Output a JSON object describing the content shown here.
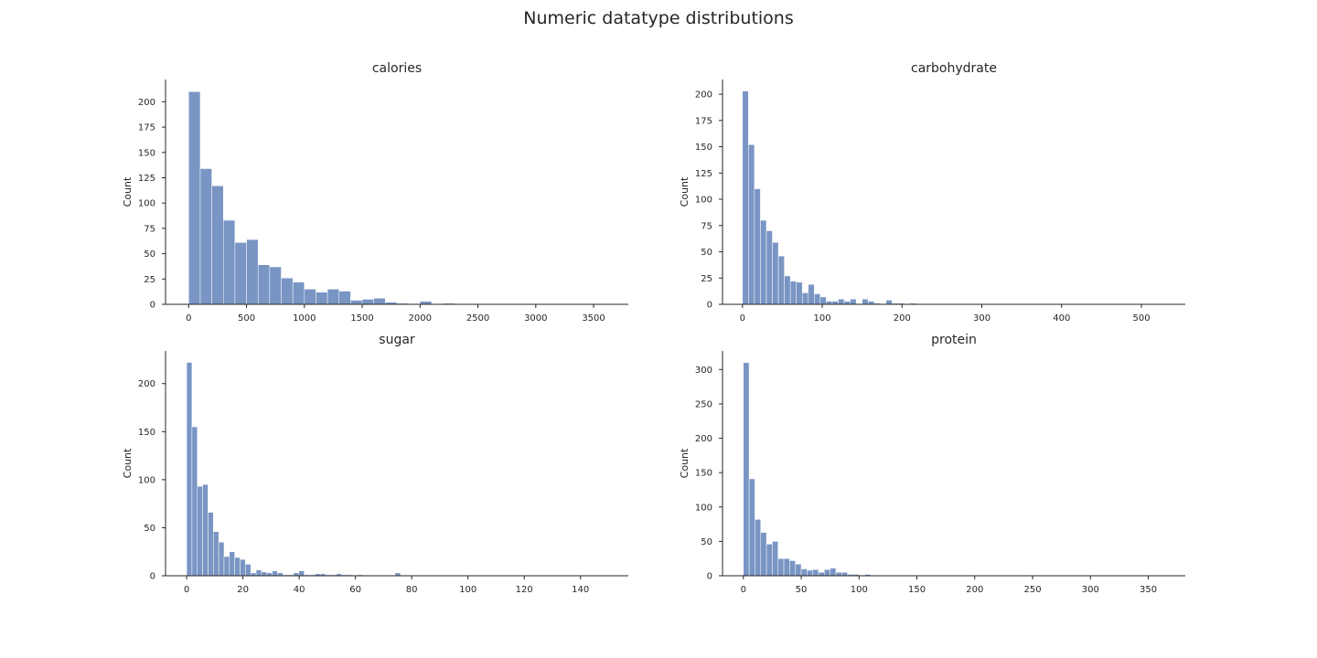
{
  "figure": {
    "title": "Numeric datatype distributions"
  },
  "chart_data": [
    {
      "type": "bar",
      "title": "calories",
      "xlabel": "",
      "ylabel": "Count",
      "xlim": [
        -200,
        3800
      ],
      "ylim": [
        0,
        222
      ],
      "xticks": [
        0,
        500,
        1000,
        1500,
        2000,
        2500,
        3000,
        3500
      ],
      "yticks": [
        0,
        25,
        50,
        75,
        100,
        125,
        150,
        175,
        200
      ],
      "bin_start": 0,
      "bin_width": 100,
      "values": [
        210,
        134,
        117,
        83,
        61,
        64,
        39,
        37,
        26,
        22,
        15,
        12,
        15,
        13,
        4,
        5,
        6,
        2,
        1,
        0,
        3,
        0,
        1,
        0,
        0,
        0,
        0,
        0,
        0,
        0,
        0,
        0,
        0,
        0,
        0,
        0,
        0
      ]
    },
    {
      "type": "bar",
      "title": "carbohydrate",
      "xlabel": "",
      "ylabel": "Count",
      "xlim": [
        -25,
        555
      ],
      "ylim": [
        0,
        214
      ],
      "xticks": [
        0,
        100,
        200,
        300,
        400,
        500
      ],
      "yticks": [
        0,
        25,
        50,
        75,
        100,
        125,
        150,
        175,
        200
      ],
      "bin_start": 0,
      "bin_width": 7.5,
      "values": [
        203,
        152,
        110,
        80,
        70,
        59,
        46,
        27,
        22,
        21,
        11,
        19,
        10,
        7,
        3,
        3,
        5,
        3,
        5,
        0,
        5,
        3,
        1,
        0,
        4,
        1,
        1,
        0,
        1,
        0,
        0,
        0,
        0,
        0,
        0,
        0,
        0,
        0,
        0,
        0,
        0,
        0,
        0,
        0,
        0,
        0,
        0,
        0,
        0,
        0,
        0,
        0,
        0,
        0,
        0,
        0,
        0,
        0,
        0,
        0,
        0,
        0,
        0,
        0,
        0,
        0,
        0,
        0,
        0,
        0
      ]
    },
    {
      "type": "bar",
      "title": "sugar",
      "xlabel": "",
      "ylabel": "Count",
      "xlim": [
        -7.5,
        157
      ],
      "ylim": [
        0,
        234
      ],
      "xticks": [
        0,
        20,
        40,
        60,
        80,
        100,
        120,
        140
      ],
      "yticks": [
        0,
        50,
        100,
        150,
        200
      ],
      "bin_start": 0,
      "bin_width": 1.9,
      "values": [
        222,
        155,
        93,
        95,
        66,
        46,
        35,
        20,
        25,
        19,
        17,
        12,
        3,
        6,
        4,
        3,
        5,
        3,
        1,
        1,
        3,
        5,
        1,
        1,
        2,
        2,
        1,
        1,
        2,
        1,
        1,
        0,
        1,
        0,
        0,
        0,
        0,
        0,
        0,
        3,
        0,
        0,
        0,
        0,
        0,
        0,
        0,
        0,
        0,
        0,
        0,
        0,
        0,
        0,
        0,
        0,
        0,
        0,
        0,
        0,
        0,
        0,
        0,
        0,
        0,
        0,
        0,
        0,
        0,
        0,
        0,
        0,
        0,
        0,
        0,
        0,
        0,
        0
      ]
    },
    {
      "type": "bar",
      "title": "protein",
      "xlabel": "",
      "ylabel": "Count",
      "xlim": [
        -18,
        382
      ],
      "ylim": [
        0,
        327
      ],
      "xticks": [
        0,
        50,
        100,
        150,
        200,
        250,
        300,
        350
      ],
      "yticks": [
        0,
        50,
        100,
        150,
        200,
        250,
        300
      ],
      "bin_start": 0,
      "bin_width": 5,
      "values": [
        310,
        141,
        82,
        63,
        46,
        50,
        25,
        25,
        22,
        17,
        10,
        8,
        9,
        5,
        9,
        11,
        5,
        5,
        2,
        2,
        1,
        2,
        0,
        1,
        1,
        1,
        1,
        0,
        0,
        0,
        0,
        0,
        0,
        0,
        1,
        0,
        1,
        1,
        0,
        0,
        0,
        0,
        0,
        0,
        1,
        0,
        0,
        0,
        0,
        0,
        0,
        0,
        0,
        0,
        0,
        0,
        0,
        0,
        0,
        0,
        0,
        0,
        0,
        0,
        0,
        0,
        0,
        0,
        0,
        0,
        0,
        0,
        0
      ]
    }
  ]
}
